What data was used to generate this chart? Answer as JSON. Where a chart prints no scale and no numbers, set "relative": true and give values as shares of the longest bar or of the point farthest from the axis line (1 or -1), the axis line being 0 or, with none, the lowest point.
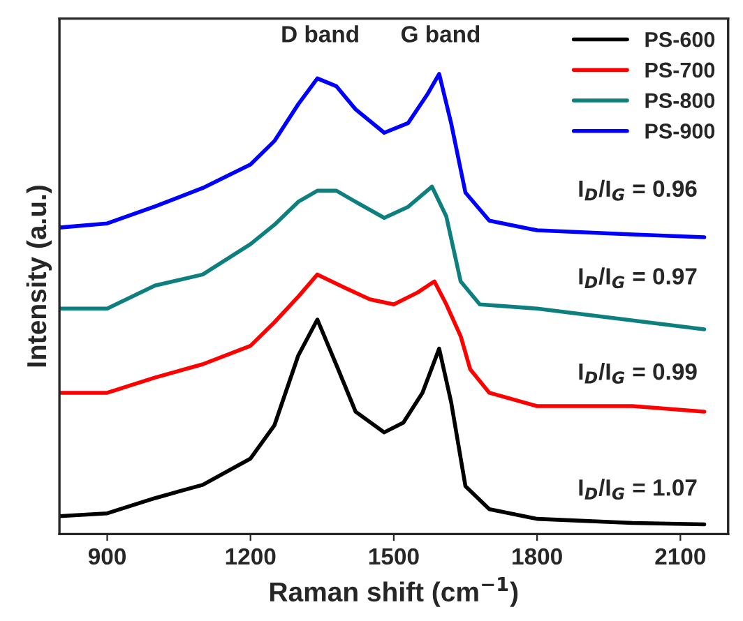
{
  "chart_data": {
    "type": "line",
    "xlabel": "Raman shift (cm$^{−1}$)",
    "ylabel": "Intensity (a.u.)",
    "relative": true,
    "xlim": [
      800,
      2200
    ],
    "xticks": [
      900,
      1200,
      1500,
      1800,
      2100
    ],
    "legend": "top right",
    "grid": false,
    "line_style": "solid",
    "marker": "none",
    "tick_labels": "x",
    "series": [
      {
        "name": "PS-600",
        "color": "#000000",
        "x": [
          800,
          900,
          1000,
          1100,
          1200,
          1250,
          1300,
          1340,
          1380,
          1420,
          1480,
          1520,
          1560,
          1595,
          1620,
          1650,
          1700,
          1800,
          2000,
          2150
        ],
        "values": [
          0.039,
          0.045,
          0.078,
          0.107,
          0.164,
          0.236,
          0.388,
          0.466,
          0.367,
          0.266,
          0.221,
          0.242,
          0.307,
          0.403,
          0.287,
          0.104,
          0.054,
          0.033,
          0.024,
          0.021
        ]
      },
      {
        "name": "PS-700",
        "color": "#ff0000",
        "x": [
          800,
          900,
          1000,
          1100,
          1200,
          1250,
          1300,
          1340,
          1400,
          1450,
          1500,
          1550,
          1585,
          1610,
          1640,
          1660,
          1700,
          1800,
          2000,
          2150
        ],
        "values": [
          0.307,
          0.307,
          0.34,
          0.369,
          0.409,
          0.46,
          0.516,
          0.564,
          0.534,
          0.51,
          0.499,
          0.525,
          0.549,
          0.499,
          0.43,
          0.358,
          0.307,
          0.278,
          0.278,
          0.266
        ]
      },
      {
        "name": "PS-800",
        "color": "#0e7f7f",
        "x": [
          800,
          900,
          1000,
          1100,
          1200,
          1250,
          1300,
          1340,
          1380,
          1420,
          1480,
          1530,
          1580,
          1610,
          1640,
          1680,
          1800,
          2000,
          2150
        ],
        "values": [
          0.49,
          0.49,
          0.54,
          0.564,
          0.63,
          0.672,
          0.722,
          0.746,
          0.746,
          0.722,
          0.687,
          0.711,
          0.755,
          0.69,
          0.549,
          0.499,
          0.49,
          0.464,
          0.445
        ]
      },
      {
        "name": "PS-900",
        "color": "#0000ff",
        "x": [
          800,
          900,
          1000,
          1100,
          1200,
          1250,
          1300,
          1340,
          1380,
          1420,
          1480,
          1530,
          1570,
          1595,
          1620,
          1650,
          1700,
          1800,
          2000,
          2150
        ],
        "values": [
          0.666,
          0.675,
          0.712,
          0.752,
          0.803,
          0.854,
          0.934,
          0.99,
          0.973,
          0.923,
          0.872,
          0.893,
          0.955,
          1.0,
          0.893,
          0.742,
          0.681,
          0.66,
          0.651,
          0.645
        ]
      }
    ],
    "annotations": [
      "D band",
      "G band",
      "I$_{D}$/I$_{G}$ = 0.96",
      "I$_{D}$/I$_{G}$ = 0.97",
      "I$_{D}$/I$_{G}$ = 0.99",
      "I$_{D}$/I$_{G}$ = 1.07"
    ]
  }
}
